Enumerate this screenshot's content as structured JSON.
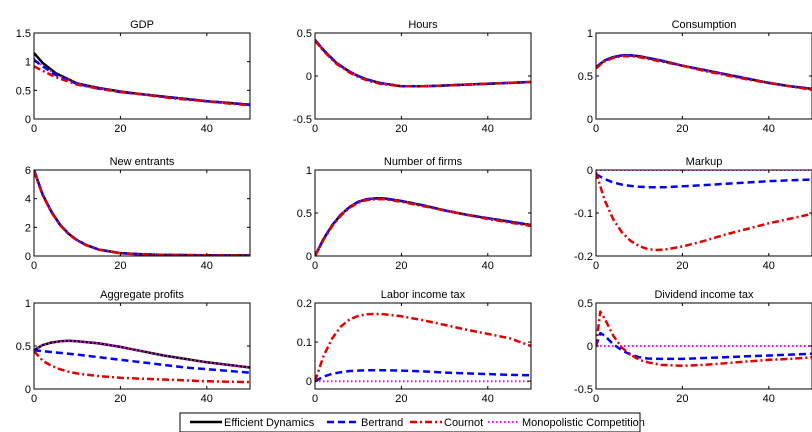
{
  "colors": {
    "efficient": "#000000",
    "bertrand": "#0000ff",
    "cournot": "#e00000",
    "monopolistic": "#ff00ff",
    "axis": "#000000"
  },
  "legend": {
    "placement": "bottom-center",
    "items": [
      {
        "key": "efficient",
        "label": "Efficient Dynamics",
        "style": "solid"
      },
      {
        "key": "bertrand",
        "label": "Bertrand",
        "style": "dashed"
      },
      {
        "key": "cournot",
        "label": "Cournot",
        "style": "dashdot"
      },
      {
        "key": "monopolistic",
        "label": "Monopolistic Competition",
        "style": "dotted"
      }
    ]
  },
  "chart_data": [
    {
      "type": "line",
      "title": "GDP",
      "xlim": [
        0,
        50
      ],
      "xticks": [
        0,
        20,
        40
      ],
      "xtick_labels": [
        "0",
        "20",
        "40"
      ],
      "ylim": [
        0,
        1.5
      ],
      "yticks": [
        0,
        0.5,
        1,
        1.5
      ],
      "ytick_labels": [
        "0",
        "0.5",
        "1",
        "1.5"
      ],
      "x": [
        0,
        2,
        5,
        10,
        15,
        20,
        25,
        30,
        35,
        40,
        45,
        50
      ],
      "series": [
        {
          "key": "efficient",
          "values": [
            1.15,
            0.98,
            0.8,
            0.62,
            0.54,
            0.48,
            0.43,
            0.39,
            0.35,
            0.31,
            0.28,
            0.25
          ]
        },
        {
          "key": "bertrand",
          "values": [
            1.03,
            0.92,
            0.77,
            0.61,
            0.53,
            0.47,
            0.43,
            0.39,
            0.35,
            0.31,
            0.28,
            0.25
          ]
        },
        {
          "key": "cournot",
          "values": [
            0.92,
            0.84,
            0.73,
            0.6,
            0.53,
            0.47,
            0.43,
            0.38,
            0.34,
            0.31,
            0.27,
            0.24
          ]
        },
        {
          "key": "monopolistic",
          "values": [
            1.05,
            0.93,
            0.78,
            0.62,
            0.54,
            0.48,
            0.43,
            0.39,
            0.35,
            0.31,
            0.28,
            0.25
          ]
        }
      ]
    },
    {
      "type": "line",
      "title": "Hours",
      "xlim": [
        0,
        50
      ],
      "xticks": [
        0,
        20,
        40
      ],
      "xtick_labels": [
        "0",
        "20",
        "40"
      ],
      "ylim": [
        -0.5,
        0.5
      ],
      "yticks": [
        -0.5,
        0,
        0.5
      ],
      "ytick_labels": [
        "-0.5",
        "0",
        "0.5"
      ],
      "x": [
        0,
        2,
        5,
        8,
        10,
        12,
        15,
        20,
        25,
        30,
        35,
        40,
        45,
        50
      ],
      "series": [
        {
          "key": "efficient",
          "values": [
            0.42,
            0.3,
            0.15,
            0.05,
            0.0,
            -0.04,
            -0.08,
            -0.12,
            -0.12,
            -0.11,
            -0.1,
            -0.09,
            -0.08,
            -0.07
          ]
        },
        {
          "key": "bertrand",
          "values": [
            0.42,
            0.3,
            0.15,
            0.05,
            0.0,
            -0.04,
            -0.08,
            -0.12,
            -0.12,
            -0.11,
            -0.1,
            -0.09,
            -0.08,
            -0.07
          ]
        },
        {
          "key": "cournot",
          "values": [
            0.41,
            0.29,
            0.14,
            0.04,
            -0.01,
            -0.05,
            -0.09,
            -0.12,
            -0.12,
            -0.11,
            -0.1,
            -0.09,
            -0.08,
            -0.07
          ]
        },
        {
          "key": "monopolistic",
          "values": [
            0.42,
            0.3,
            0.15,
            0.05,
            0.0,
            -0.04,
            -0.08,
            -0.12,
            -0.12,
            -0.11,
            -0.1,
            -0.09,
            -0.08,
            -0.07
          ]
        }
      ]
    },
    {
      "type": "line",
      "title": "Consumption",
      "xlim": [
        0,
        50
      ],
      "xticks": [
        0,
        20,
        40
      ],
      "xtick_labels": [
        "0",
        "20",
        "40"
      ],
      "ylim": [
        0,
        1
      ],
      "yticks": [
        0,
        0.5,
        1
      ],
      "ytick_labels": [
        "0",
        "0.5",
        "1"
      ],
      "x": [
        0,
        2,
        4,
        6,
        8,
        10,
        15,
        20,
        25,
        30,
        35,
        40,
        45,
        50
      ],
      "series": [
        {
          "key": "efficient",
          "values": [
            0.6,
            0.68,
            0.72,
            0.74,
            0.74,
            0.73,
            0.68,
            0.62,
            0.57,
            0.52,
            0.47,
            0.42,
            0.38,
            0.35
          ]
        },
        {
          "key": "bertrand",
          "values": [
            0.6,
            0.68,
            0.72,
            0.74,
            0.74,
            0.73,
            0.68,
            0.62,
            0.57,
            0.52,
            0.47,
            0.42,
            0.38,
            0.35
          ]
        },
        {
          "key": "cournot",
          "values": [
            0.59,
            0.67,
            0.71,
            0.73,
            0.73,
            0.72,
            0.67,
            0.62,
            0.56,
            0.51,
            0.46,
            0.42,
            0.38,
            0.34
          ]
        },
        {
          "key": "monopolistic",
          "values": [
            0.61,
            0.68,
            0.72,
            0.74,
            0.74,
            0.73,
            0.68,
            0.62,
            0.57,
            0.52,
            0.47,
            0.42,
            0.38,
            0.35
          ]
        }
      ]
    },
    {
      "type": "line",
      "title": "New entrants",
      "xlim": [
        0,
        50
      ],
      "xticks": [
        0,
        20,
        40
      ],
      "xtick_labels": [
        "0",
        "20",
        "40"
      ],
      "ylim": [
        0,
        6
      ],
      "yticks": [
        0,
        2,
        4,
        6
      ],
      "ytick_labels": [
        "0",
        "2",
        "4",
        "6"
      ],
      "x": [
        0,
        2,
        4,
        6,
        8,
        10,
        12,
        15,
        20,
        25,
        30,
        40,
        50
      ],
      "series": [
        {
          "key": "efficient",
          "values": [
            6.0,
            4.3,
            3.1,
            2.2,
            1.55,
            1.1,
            0.78,
            0.45,
            0.2,
            0.12,
            0.08,
            0.05,
            0.04
          ]
        },
        {
          "key": "bertrand",
          "values": [
            6.0,
            4.3,
            3.1,
            2.2,
            1.55,
            1.1,
            0.78,
            0.45,
            0.2,
            0.12,
            0.08,
            0.05,
            0.04
          ]
        },
        {
          "key": "cournot",
          "values": [
            5.9,
            4.25,
            3.05,
            2.17,
            1.52,
            1.08,
            0.76,
            0.44,
            0.19,
            0.11,
            0.08,
            0.05,
            0.04
          ]
        },
        {
          "key": "monopolistic",
          "values": [
            6.0,
            4.3,
            3.1,
            2.2,
            1.55,
            1.1,
            0.78,
            0.45,
            0.2,
            0.12,
            0.08,
            0.05,
            0.04
          ]
        }
      ]
    },
    {
      "type": "line",
      "title": "Number of firms",
      "xlim": [
        0,
        50
      ],
      "xticks": [
        0,
        20,
        40
      ],
      "xtick_labels": [
        "0",
        "20",
        "40"
      ],
      "ylim": [
        0,
        1
      ],
      "yticks": [
        0,
        0.5,
        1
      ],
      "ytick_labels": [
        "0",
        "0.5",
        "1"
      ],
      "x": [
        0,
        2,
        4,
        6,
        8,
        10,
        12,
        14,
        16,
        20,
        25,
        30,
        35,
        40,
        45,
        50
      ],
      "series": [
        {
          "key": "efficient",
          "values": [
            0.0,
            0.2,
            0.36,
            0.48,
            0.57,
            0.63,
            0.66,
            0.67,
            0.67,
            0.64,
            0.59,
            0.53,
            0.48,
            0.44,
            0.4,
            0.36
          ]
        },
        {
          "key": "bertrand",
          "values": [
            0.0,
            0.2,
            0.36,
            0.48,
            0.57,
            0.63,
            0.66,
            0.67,
            0.67,
            0.64,
            0.59,
            0.53,
            0.48,
            0.44,
            0.4,
            0.36
          ]
        },
        {
          "key": "cournot",
          "values": [
            0.0,
            0.19,
            0.35,
            0.47,
            0.56,
            0.62,
            0.65,
            0.66,
            0.66,
            0.63,
            0.58,
            0.53,
            0.48,
            0.43,
            0.39,
            0.35
          ]
        },
        {
          "key": "monopolistic",
          "values": [
            0.0,
            0.2,
            0.36,
            0.48,
            0.57,
            0.63,
            0.66,
            0.67,
            0.67,
            0.64,
            0.59,
            0.53,
            0.48,
            0.44,
            0.4,
            0.36
          ]
        }
      ]
    },
    {
      "type": "line",
      "title": "Markup",
      "xlim": [
        0,
        50
      ],
      "xticks": [
        0,
        20,
        40
      ],
      "xtick_labels": [
        "0",
        "20",
        "40"
      ],
      "ylim": [
        -0.2,
        0
      ],
      "yticks": [
        -0.2,
        -0.1,
        0
      ],
      "ytick_labels": [
        "-0.2",
        "-0.1",
        "0"
      ],
      "x": [
        0,
        2,
        4,
        6,
        8,
        10,
        12,
        14,
        16,
        20,
        25,
        30,
        35,
        40,
        45,
        50
      ],
      "series": [
        {
          "key": "bertrand",
          "values": [
            -0.01,
            -0.021,
            -0.029,
            -0.034,
            -0.037,
            -0.039,
            -0.04,
            -0.04,
            -0.04,
            -0.038,
            -0.035,
            -0.032,
            -0.029,
            -0.026,
            -0.024,
            -0.022
          ]
        },
        {
          "key": "cournot",
          "values": [
            -0.005,
            -0.07,
            -0.115,
            -0.145,
            -0.165,
            -0.177,
            -0.184,
            -0.186,
            -0.185,
            -0.178,
            -0.165,
            -0.15,
            -0.137,
            -0.124,
            -0.113,
            -0.102
          ]
        },
        {
          "key": "monopolistic",
          "values": [
            0,
            0,
            0,
            0,
            0,
            0,
            0,
            0,
            0,
            0,
            0,
            0,
            0,
            0,
            0,
            0
          ]
        }
      ]
    },
    {
      "type": "line",
      "title": "Aggregate profits",
      "xlim": [
        0,
        50
      ],
      "xticks": [
        0,
        20,
        40
      ],
      "xtick_labels": [
        "0",
        "20",
        "40"
      ],
      "ylim": [
        0,
        1
      ],
      "yticks": [
        0,
        0.5,
        1
      ],
      "ytick_labels": [
        "0",
        "0.5",
        "1"
      ],
      "x": [
        0,
        2,
        4,
        6,
        8,
        10,
        15,
        20,
        25,
        30,
        35,
        40,
        45,
        50
      ],
      "series": [
        {
          "key": "efficient",
          "values": [
            0.45,
            0.51,
            0.54,
            0.555,
            0.56,
            0.555,
            0.53,
            0.49,
            0.44,
            0.39,
            0.35,
            0.31,
            0.28,
            0.25
          ]
        },
        {
          "key": "bertrand",
          "values": [
            0.45,
            0.44,
            0.43,
            0.42,
            0.41,
            0.4,
            0.37,
            0.34,
            0.31,
            0.28,
            0.25,
            0.23,
            0.21,
            0.19
          ]
        },
        {
          "key": "cournot",
          "values": [
            0.44,
            0.33,
            0.27,
            0.23,
            0.2,
            0.18,
            0.15,
            0.13,
            0.12,
            0.11,
            0.1,
            0.09,
            0.085,
            0.08
          ]
        },
        {
          "key": "monopolistic",
          "values": [
            0.45,
            0.51,
            0.54,
            0.555,
            0.56,
            0.555,
            0.53,
            0.49,
            0.44,
            0.39,
            0.35,
            0.31,
            0.28,
            0.25
          ]
        }
      ]
    },
    {
      "type": "line",
      "title": "Labor income tax",
      "xlim": [
        0,
        50
      ],
      "xticks": [
        0,
        20,
        40
      ],
      "xtick_labels": [
        "0",
        "20",
        "40"
      ],
      "ylim": [
        -0.02,
        0.2
      ],
      "yticks": [
        0,
        0.1,
        0.2
      ],
      "ytick_labels": [
        "0",
        "0.1",
        "0.2"
      ],
      "x": [
        0,
        2,
        4,
        6,
        8,
        10,
        12,
        14,
        16,
        20,
        25,
        30,
        35,
        40,
        45,
        50
      ],
      "series": [
        {
          "key": "bertrand",
          "values": [
            0.0,
            0.012,
            0.019,
            0.023,
            0.026,
            0.027,
            0.028,
            0.028,
            0.028,
            0.027,
            0.025,
            0.022,
            0.02,
            0.018,
            0.016,
            0.015
          ]
        },
        {
          "key": "cournot",
          "values": [
            0.0,
            0.065,
            0.11,
            0.14,
            0.158,
            0.167,
            0.171,
            0.172,
            0.171,
            0.166,
            0.156,
            0.144,
            0.132,
            0.121,
            0.11,
            0.09
          ]
        },
        {
          "key": "monopolistic",
          "values": [
            0,
            0,
            0,
            0,
            0,
            0,
            0,
            0,
            0,
            0,
            0,
            0,
            0,
            0,
            0,
            0
          ]
        }
      ]
    },
    {
      "type": "line",
      "title": "Dividend income tax",
      "xlim": [
        0,
        50
      ],
      "xticks": [
        0,
        20,
        40
      ],
      "xtick_labels": [
        "0",
        "20",
        "40"
      ],
      "ylim": [
        -0.5,
        0.5
      ],
      "yticks": [
        -0.5,
        0,
        0.5
      ],
      "ytick_labels": [
        "-0.5",
        "0",
        "0.5"
      ],
      "x": [
        0,
        1,
        2,
        4,
        6,
        8,
        10,
        12,
        15,
        20,
        25,
        30,
        35,
        40,
        45,
        50
      ],
      "series": [
        {
          "key": "bertrand",
          "values": [
            0.0,
            0.15,
            0.12,
            0.02,
            -0.05,
            -0.1,
            -0.13,
            -0.145,
            -0.15,
            -0.15,
            -0.14,
            -0.13,
            -0.12,
            -0.11,
            -0.1,
            -0.09
          ]
        },
        {
          "key": "cournot",
          "values": [
            0.0,
            0.4,
            0.32,
            0.12,
            -0.02,
            -0.1,
            -0.16,
            -0.19,
            -0.22,
            -0.23,
            -0.22,
            -0.2,
            -0.18,
            -0.16,
            -0.15,
            -0.13
          ]
        },
        {
          "key": "monopolistic",
          "values": [
            0,
            0,
            0,
            0,
            0,
            0,
            0,
            0,
            0,
            0,
            0,
            0,
            0,
            0,
            0,
            0
          ]
        }
      ]
    }
  ]
}
